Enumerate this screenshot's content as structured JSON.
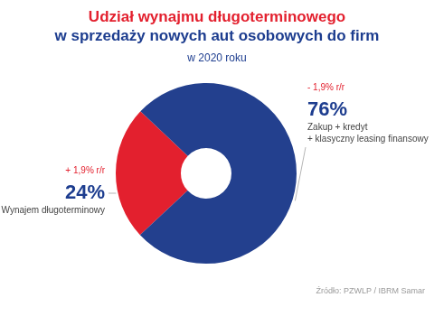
{
  "chart_data": {
    "type": "doughnut",
    "title": "Udział wynajmu długoterminowego\nw sprzedaży nowych aut osobowych do firm",
    "subtitle": "w 2020 roku",
    "categories": [
      "Wynajem długoterminowy",
      "Zakup + kredyt\n+ klasyczny leasing finansowy"
    ],
    "values": [
      24,
      76
    ],
    "value_labels": [
      "24%",
      "76%"
    ],
    "change_labels": [
      "+ 1,9% r/r",
      "- 1,9% r/r"
    ],
    "colors": [
      "#e3202e",
      "#23408e"
    ],
    "data_labels": true,
    "source": "Źródło: PZWLP / IBRM Samar"
  }
}
